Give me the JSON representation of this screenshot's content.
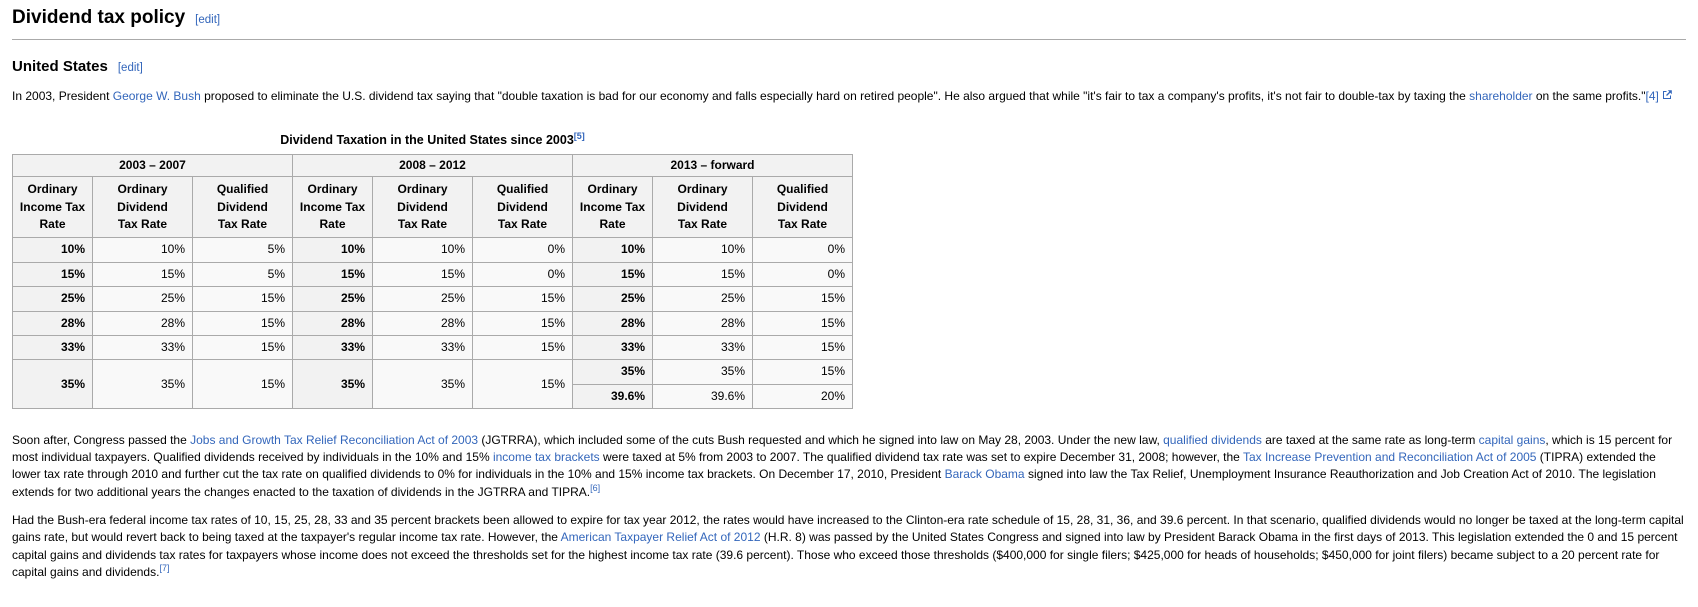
{
  "colors": {
    "link_blue": "#3366bb",
    "table_border": "#aaaaaa",
    "header_cell_bg": "#f2f2f2",
    "table_bg": "#f9f9f9",
    "heading_rule": "#aaaaaa"
  },
  "page": {
    "title": "Dividend tax policy",
    "title_edit_label": "[edit]",
    "section_title": "United States",
    "section_edit_label": "[edit]"
  },
  "paragraphs": {
    "p1": [
      {
        "text": "In 2003, President "
      },
      {
        "link": "George W. Bush"
      },
      {
        "text": " proposed to eliminate the U.S. dividend tax saying that \"double taxation is bad for our economy and falls especially hard on retired people\". He also argued that while \"it's fair to tax a company's profits, it's not fair to double-tax by taxing the "
      },
      {
        "link": "shareholder"
      },
      {
        "text": " on the same profits.\""
      },
      {
        "link": "[4]"
      },
      {
        "ext": true
      }
    ],
    "p2": [
      {
        "text": "Soon after, Congress passed the "
      },
      {
        "link": "Jobs and Growth Tax Relief Reconciliation Act of 2003"
      },
      {
        "text": " (JGTRRA), which included some of the cuts Bush requested and which he signed into law on May 28, 2003. Under the new law, "
      },
      {
        "link": "qualified dividends"
      },
      {
        "text": " are taxed at the same rate as long-term "
      },
      {
        "link": "capital gains"
      },
      {
        "text": ", which is 15 percent for most individual taxpayers. Qualified dividends received by individuals in the 10% and 15% "
      },
      {
        "link": "income tax brackets"
      },
      {
        "text": " were taxed at 5% from 2003 to 2007. The qualified dividend tax rate was set to expire December 31, 2008; however, the "
      },
      {
        "link": "Tax Increase Prevention and Reconciliation Act of 2005"
      },
      {
        "text": " (TIPRA) extended the lower tax rate through 2010 and further cut the tax rate on qualified dividends to 0% for individuals in the 10% and 15% income tax brackets. On December 17, 2010, President "
      },
      {
        "link": "Barack Obama"
      },
      {
        "text": " signed into law the Tax Relief, Unemployment Insurance Reauthorization and Job Creation Act of 2010. The legislation extends for two additional years the changes enacted to the taxation of dividends in the JGTRRA and TIPRA."
      },
      {
        "ref": "[6]"
      }
    ],
    "p3": [
      {
        "text": "Had the Bush-era federal income tax rates of 10, 15, 25, 28, 33 and 35 percent brackets been allowed to expire for tax year 2012, the rates would have increased to the Clinton-era rate schedule of 15, 28, 31, 36, and 39.6 percent. In that scenario, qualified dividends would no longer be taxed at the long-term capital gains rate, but would revert back to being taxed at the taxpayer's regular income tax rate. However, the "
      },
      {
        "link": "American Taxpayer Relief Act of 2012"
      },
      {
        "text": " (H.R. 8) was passed by the United States Congress and signed into law by President Barack Obama in the first days of 2013. This legislation extended the 0 and 15 percent capital gains and dividends tax rates for taxpayers whose income does not exceed the thresholds set for the highest income tax rate (39.6 percent). Those who exceed those thresholds ($400,000 for single filers; $425,000 for heads of households; $450,000 for joint filers) became subject to a 20 percent rate for capital gains and dividends."
      },
      {
        "ref": "[7]"
      }
    ]
  },
  "table": {
    "caption": [
      {
        "text": "Dividend Taxation in the United States since 2003"
      },
      {
        "ref": "[5]"
      }
    ],
    "groups": [
      {
        "label": "2003 – 2007",
        "colspan": 3
      },
      {
        "label": "2008 – 2012",
        "colspan": 3
      },
      {
        "label": "2013 – forward",
        "colspan": 3
      }
    ],
    "columns": [
      "Ordinary\nIncome Tax\nRate",
      "Ordinary\nDividend\nTax Rate",
      "Qualified\nDividend\nTax Rate",
      "Ordinary\nIncome Tax\nRate",
      "Ordinary\nDividend\nTax Rate",
      "Qualified\nDividend\nTax Rate",
      "Ordinary\nIncome Tax\nRate",
      "Ordinary\nDividend\nTax Rate",
      "Qualified\nDividend\nTax Rate"
    ],
    "rows": [
      [
        {
          "v": "10%",
          "h": 1
        },
        {
          "v": "10%"
        },
        {
          "v": "5%"
        },
        {
          "v": "10%",
          "h": 1
        },
        {
          "v": "10%"
        },
        {
          "v": "0%"
        },
        {
          "v": "10%",
          "h": 1
        },
        {
          "v": "10%"
        },
        {
          "v": "0%"
        }
      ],
      [
        {
          "v": "15%",
          "h": 1
        },
        {
          "v": "15%"
        },
        {
          "v": "5%"
        },
        {
          "v": "15%",
          "h": 1
        },
        {
          "v": "15%"
        },
        {
          "v": "0%"
        },
        {
          "v": "15%",
          "h": 1
        },
        {
          "v": "15%"
        },
        {
          "v": "0%"
        }
      ],
      [
        {
          "v": "25%",
          "h": 1
        },
        {
          "v": "25%"
        },
        {
          "v": "15%"
        },
        {
          "v": "25%",
          "h": 1
        },
        {
          "v": "25%"
        },
        {
          "v": "15%"
        },
        {
          "v": "25%",
          "h": 1
        },
        {
          "v": "25%"
        },
        {
          "v": "15%"
        }
      ],
      [
        {
          "v": "28%",
          "h": 1
        },
        {
          "v": "28%"
        },
        {
          "v": "15%"
        },
        {
          "v": "28%",
          "h": 1
        },
        {
          "v": "28%"
        },
        {
          "v": "15%"
        },
        {
          "v": "28%",
          "h": 1
        },
        {
          "v": "28%"
        },
        {
          "v": "15%"
        }
      ],
      [
        {
          "v": "33%",
          "h": 1
        },
        {
          "v": "33%"
        },
        {
          "v": "15%"
        },
        {
          "v": "33%",
          "h": 1
        },
        {
          "v": "33%"
        },
        {
          "v": "15%"
        },
        {
          "v": "33%",
          "h": 1
        },
        {
          "v": "33%"
        },
        {
          "v": "15%"
        }
      ],
      [
        {
          "v": "35%",
          "h": 1,
          "rs": 2
        },
        {
          "v": "35%",
          "rs": 2
        },
        {
          "v": "15%",
          "rs": 2
        },
        {
          "v": "35%",
          "h": 1,
          "rs": 2
        },
        {
          "v": "35%",
          "rs": 2
        },
        {
          "v": "15%",
          "rs": 2
        },
        {
          "v": "35%",
          "h": 1
        },
        {
          "v": "35%"
        },
        {
          "v": "15%"
        }
      ],
      [
        {
          "v": "39.6%",
          "h": 1
        },
        {
          "v": "39.6%"
        },
        {
          "v": "20%"
        }
      ]
    ]
  }
}
